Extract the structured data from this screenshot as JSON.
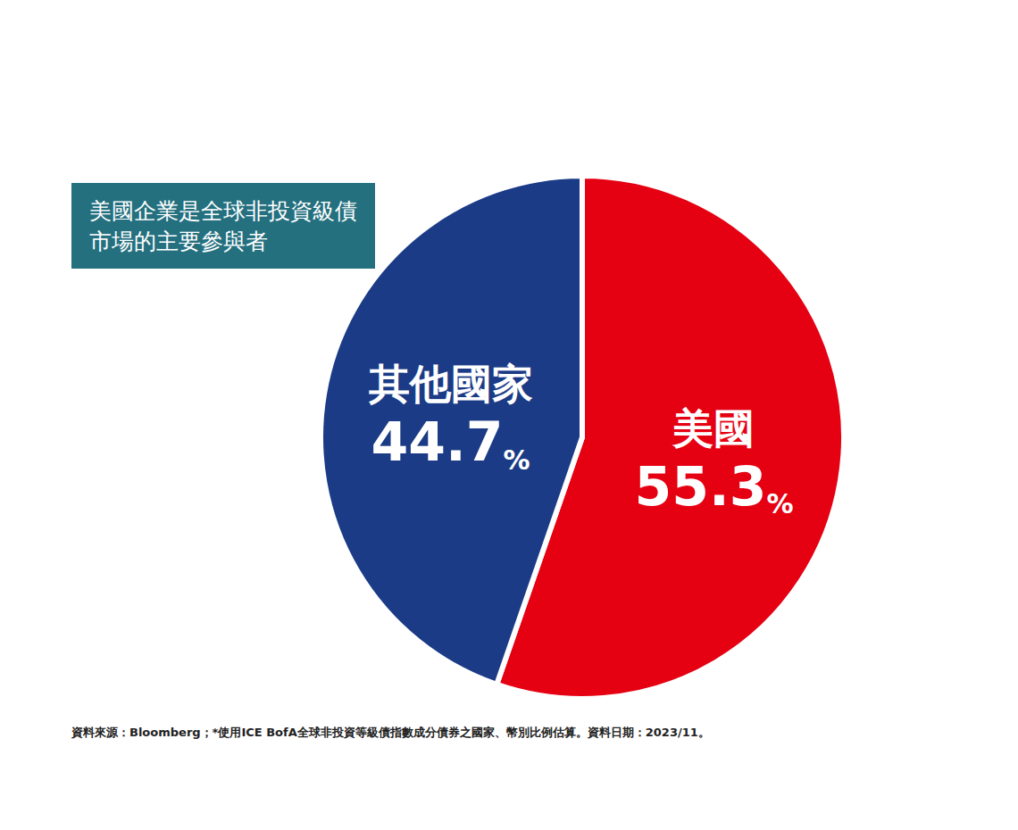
{
  "chart_data": {
    "type": "pie",
    "title": "美國企業是全球非投資級債\n市場的主要參與者",
    "categories": [
      "美國",
      "其他國家"
    ],
    "values": [
      55.3,
      44.7
    ],
    "value_labels": [
      "55.3%",
      "44.7%"
    ],
    "colors": [
      "#e50012",
      "#1b3b86"
    ],
    "data_labels": true,
    "legend": false,
    "note": "資料來源：Bloomberg；*使用ICE BofA全球非投資等級債指數成分債券之國家、幣別比例估算。資料日期：2023/11。"
  }
}
